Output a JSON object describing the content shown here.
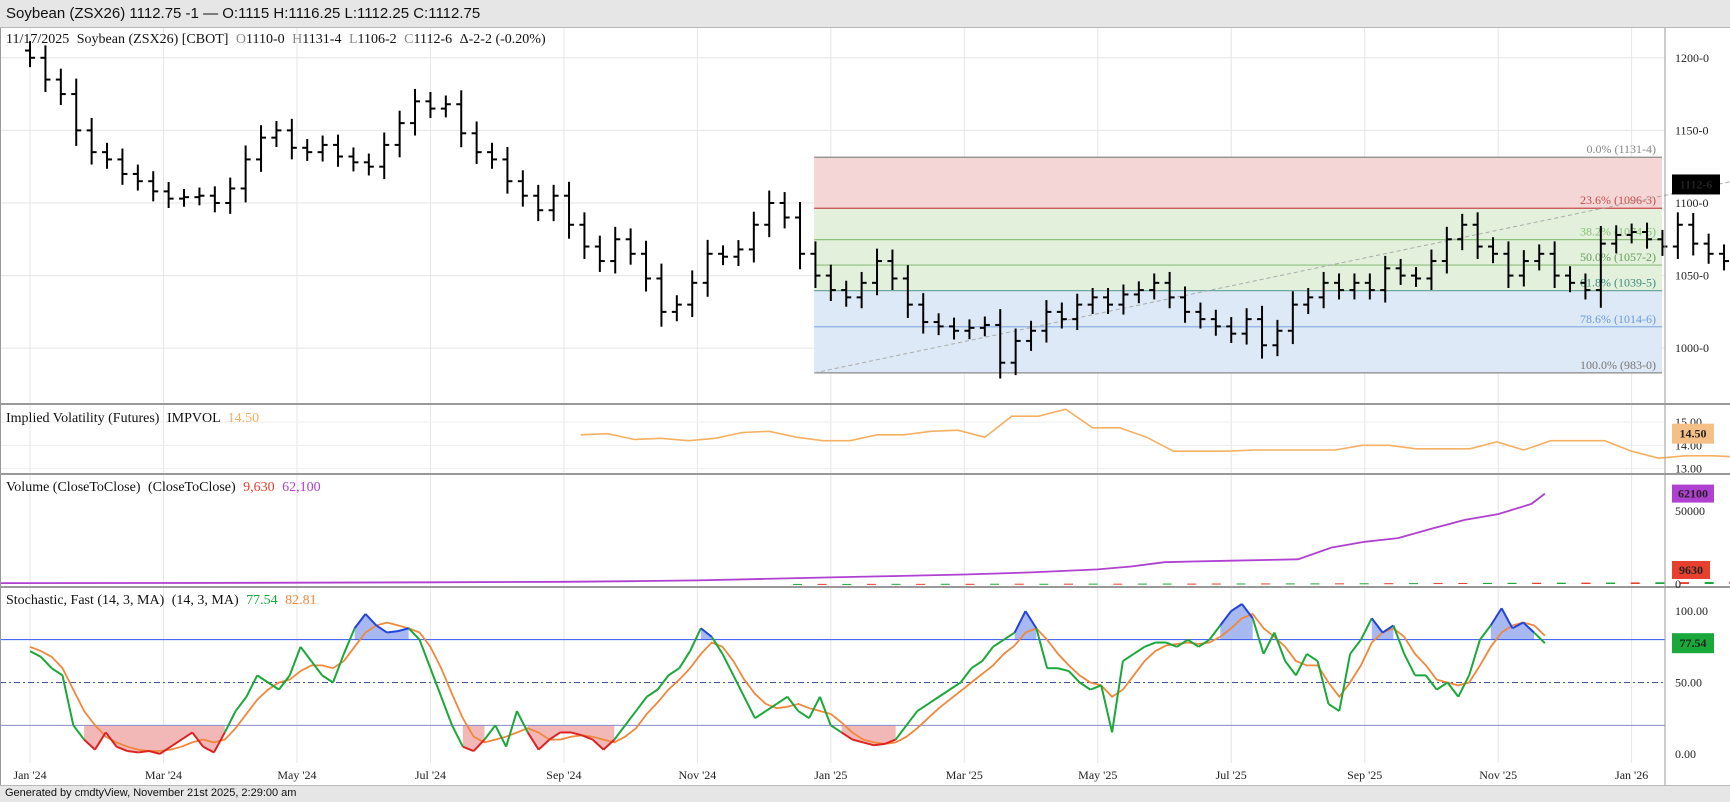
{
  "window": {
    "title": "Soybean (ZSX26) 1112.75 -1 — O:1115 H:1116.25 L:1112.25 C:1112.75"
  },
  "footer": {
    "text": "Generated by cmdtyView, November 21st 2025, 2:29:00 am"
  },
  "colors": {
    "stoch_k": "#1aa83a",
    "stoch_d": "#f0883c",
    "volume_bar_up": "#1aa83a",
    "volume_bar_down": "#e8402e",
    "open_interest": "#b040d0",
    "impvol": "#f5b062",
    "last_price_badge": "#000000"
  },
  "chart_data": [
    {
      "type": "ohlc",
      "panel": "price",
      "header": {
        "date": "11/17/2025",
        "symbol": "Soybean (ZSX26) [CBOT]",
        "o_label": "O",
        "o_value": "1110-0",
        "h_label": "H",
        "h_value": "1131-4",
        "l_label": "L",
        "l_value": "1106-2",
        "c_label": "C",
        "c_value": "1112-6",
        "change": "Δ-2-2 (-0.20%)"
      },
      "last_price_label": "1112-6",
      "last_price": 1112.75,
      "ylim": [
        965,
        1215
      ],
      "yticks": [
        1000,
        1050,
        1100,
        1150,
        1200
      ],
      "ytick_labels": [
        "1000-0",
        "1050-0",
        "1100-0",
        "1150-0",
        "1200-0"
      ],
      "x_months": [
        "Jan '24",
        "Mar '24",
        "May '24",
        "Jul '24",
        "Sep '24",
        "Nov '24",
        "Jan '25",
        "Mar '25",
        "May '25",
        "Jul '25",
        "Sep '25",
        "Nov '25",
        "Jan '26"
      ],
      "x_month_index": [
        0,
        2,
        4,
        6,
        8,
        10,
        12,
        14,
        16,
        18,
        20,
        22,
        24
      ],
      "xlim": [
        -0.45,
        24.5
      ],
      "weekly_close": [
        1200,
        1185,
        1175,
        1150,
        1135,
        1130,
        1120,
        1115,
        1108,
        1103,
        1104,
        1105,
        1100,
        1110,
        1130,
        1145,
        1150,
        1138,
        1135,
        1140,
        1132,
        1128,
        1125,
        1140,
        1155,
        1170,
        1165,
        1168,
        1148,
        1135,
        1130,
        1115,
        1105,
        1095,
        1105,
        1085,
        1070,
        1060,
        1075,
        1065,
        1048,
        1025,
        1030,
        1045,
        1065,
        1063,
        1068,
        1085,
        1100,
        1090,
        1065,
        1050,
        1040,
        1035,
        1045,
        1060,
        1048,
        1030,
        1018,
        1015,
        1012,
        1014,
        1016,
        990,
        1005,
        1012,
        1025,
        1020,
        1030,
        1035,
        1030,
        1037,
        1040,
        1045,
        1035,
        1025,
        1020,
        1015,
        1010,
        1020,
        1002,
        1012,
        1030,
        1035,
        1045,
        1040,
        1045,
        1040,
        1055,
        1050,
        1048,
        1060,
        1075,
        1085,
        1070,
        1065,
        1050,
        1060,
        1065,
        1050,
        1045,
        1040,
        1072,
        1078,
        1080,
        1075,
        1070,
        1085,
        1072,
        1065,
        1060,
        1058,
        1060,
        1072,
        1090,
        1105,
        1110,
        1122,
        1112.75
      ],
      "fib_levels": [
        {
          "pct": "0.0%",
          "label": "(1131-4)",
          "value": 1131.5
        },
        {
          "pct": "23.6%",
          "label": "(1096-3)",
          "value": 1096.375
        },
        {
          "pct": "38.2%",
          "label": "(1074-6)",
          "value": 1074.75
        },
        {
          "pct": "50.0%",
          "label": "(1057-2)",
          "value": 1057.25
        },
        {
          "pct": "61.8%",
          "label": "(1039-5)",
          "value": 1039.625
        },
        {
          "pct": "78.6%",
          "label": "(1014-6)",
          "value": 1014.75
        },
        {
          "pct": "100.0%",
          "label": "(983-0)",
          "value": 983
        }
      ],
      "fib_start_x": 11.75
    },
    {
      "type": "line",
      "panel": "implied_volatility",
      "label": "Implied Volatility (Futures)",
      "code": "IMPVOL",
      "value_text": "14.50",
      "badge": "14.50",
      "ylim": [
        12.9,
        15.6
      ],
      "yticks": [
        13,
        14,
        15
      ],
      "ytick_labels": [
        "13.00",
        "14.00",
        "15.00"
      ],
      "x_start": 8.25,
      "series": [
        14.45,
        14.5,
        14.25,
        14.3,
        14.2,
        14.3,
        14.55,
        14.6,
        14.35,
        14.2,
        14.2,
        14.45,
        14.45,
        14.6,
        14.65,
        14.35,
        15.25,
        15.25,
        15.55,
        14.75,
        14.75,
        14.35,
        13.75,
        13.75,
        13.75,
        13.8,
        13.8,
        13.8,
        13.8,
        14.0,
        14.0,
        13.85,
        13.85,
        13.85,
        14.15,
        13.8,
        14.2,
        14.2,
        14.2,
        13.75,
        13.45,
        13.55,
        13.55,
        13.5,
        13.5,
        13.7,
        13.7,
        13.7,
        13.65,
        13.6,
        13.6,
        13.6,
        13.6,
        13.55,
        13.7,
        14.05,
        14.35,
        14.2,
        14.1,
        14.2,
        14.35,
        14.15,
        15.05,
        14.5
      ]
    },
    {
      "type": "bar+line",
      "panel": "volume",
      "label": "Volume (CloseToClose)",
      "label2": "(CloseToClose)",
      "volume_value_text": "9,630",
      "oi_value_text": "62,100",
      "volume_badge": "9630",
      "oi_badge": "62100",
      "ylim": [
        0,
        68000
      ],
      "yticks": [
        0,
        50000
      ],
      "ytick_labels": [
        "0",
        "50000"
      ],
      "volume_x_start": 11.5,
      "volume": [
        50,
        80,
        60,
        90,
        120,
        100,
        150,
        130,
        180,
        200,
        160,
        220,
        250,
        230,
        280,
        300,
        260,
        320,
        350,
        380,
        400,
        420,
        450,
        500,
        550,
        600,
        650,
        700,
        750,
        800,
        850,
        900,
        950,
        1000,
        1100,
        1200,
        1300,
        1400,
        1500,
        1600,
        1700,
        1800,
        2000,
        2200,
        2300,
        2500,
        2700,
        2800,
        2900,
        3000,
        3100,
        3200,
        3300,
        3300,
        7000,
        5000,
        4500,
        5000,
        5500,
        6000,
        6500,
        7000,
        6000,
        7000,
        6000,
        23000,
        13000,
        14000,
        9630
      ],
      "volume_up": [
        true,
        false,
        true,
        false,
        true,
        false,
        true,
        false,
        true,
        false,
        true,
        false,
        true,
        false,
        true,
        true,
        false,
        false,
        true,
        false,
        true,
        true,
        false,
        true,
        false,
        true,
        false,
        false,
        true,
        true,
        false,
        true,
        false,
        true,
        false,
        true,
        false,
        true,
        false,
        true,
        true,
        false,
        true,
        false,
        true,
        false,
        true,
        false,
        true,
        false,
        true,
        false,
        false,
        false,
        true,
        false,
        true,
        false,
        false,
        false,
        true,
        false,
        true,
        false,
        true,
        true,
        false,
        false,
        false
      ],
      "open_interest_x": [
        -0.45,
        2,
        4,
        6,
        8,
        9,
        10,
        11,
        12,
        13,
        14,
        15,
        16,
        16.5,
        17,
        17.5,
        18,
        18.5,
        19,
        19.5,
        20,
        20.5,
        21,
        21.5,
        22,
        22.5,
        22.7
      ],
      "open_interest": [
        600,
        700,
        900,
        1200,
        1500,
        1900,
        2500,
        3500,
        4500,
        5500,
        6500,
        8000,
        10000,
        12000,
        15000,
        15500,
        16000,
        16500,
        17000,
        25000,
        29000,
        31500,
        38000,
        44000,
        48000,
        55000,
        62100
      ]
    },
    {
      "type": "line",
      "panel": "stochastic",
      "label": "Stochastic, Fast (14, 3, MA)",
      "label2": "(14, 3, MA)",
      "k_text": "77.54",
      "d_text": "82.81",
      "badge": "77.54",
      "ylim": [
        -5,
        112
      ],
      "yticks": [
        0,
        50,
        100
      ],
      "ytick_labels": [
        "0.00",
        "50.00",
        "100.00"
      ],
      "upper_band": 80,
      "lower_band": 20,
      "mid_band": 50,
      "k": [
        72,
        68,
        60,
        55,
        20,
        10,
        3,
        15,
        5,
        2,
        1,
        2,
        0,
        5,
        10,
        15,
        5,
        1,
        15,
        30,
        40,
        55,
        50,
        45,
        55,
        75,
        65,
        55,
        50,
        70,
        88,
        98,
        90,
        85,
        86,
        88,
        80,
        60,
        40,
        20,
        5,
        2,
        10,
        20,
        5,
        30,
        15,
        3,
        10,
        15,
        15,
        13,
        10,
        3,
        10,
        20,
        30,
        40,
        45,
        55,
        60,
        72,
        88,
        82,
        70,
        55,
        40,
        25,
        30,
        35,
        40,
        30,
        25,
        40,
        20,
        15,
        10,
        8,
        6,
        7,
        10,
        20,
        30,
        35,
        40,
        45,
        50,
        60,
        65,
        75,
        80,
        85,
        100,
        88,
        60,
        60,
        58,
        50,
        45,
        48,
        15,
        65,
        70,
        75,
        78,
        78,
        75,
        80,
        75,
        80,
        90,
        100,
        105,
        95,
        70,
        85,
        65,
        55,
        70,
        65,
        35,
        30,
        70,
        80,
        95,
        85,
        90,
        70,
        55,
        55,
        45,
        50,
        40,
        55,
        80,
        90,
        102,
        88,
        92,
        85,
        77.54
      ],
      "d": [
        75,
        72,
        68,
        60,
        45,
        30,
        20,
        12,
        8,
        5,
        3,
        2,
        2,
        3,
        5,
        8,
        10,
        8,
        10,
        18,
        28,
        38,
        45,
        50,
        52,
        58,
        62,
        62,
        60,
        65,
        75,
        85,
        90,
        92,
        90,
        88,
        85,
        75,
        60,
        42,
        25,
        12,
        8,
        10,
        12,
        15,
        18,
        15,
        10,
        10,
        12,
        13,
        12,
        10,
        8,
        12,
        18,
        28,
        36,
        45,
        52,
        60,
        70,
        78,
        75,
        65,
        52,
        42,
        35,
        32,
        33,
        35,
        32,
        30,
        28,
        22,
        15,
        10,
        8,
        7,
        8,
        12,
        18,
        25,
        32,
        38,
        44,
        50,
        56,
        62,
        70,
        76,
        85,
        88,
        80,
        70,
        62,
        55,
        50,
        48,
        40,
        45,
        55,
        65,
        72,
        76,
        77,
        78,
        77,
        78,
        82,
        88,
        95,
        98,
        88,
        82,
        75,
        65,
        62,
        62,
        50,
        40,
        50,
        62,
        78,
        85,
        88,
        82,
        70,
        62,
        52,
        50,
        48,
        50,
        62,
        75,
        85,
        90,
        92,
        90,
        82.81
      ]
    }
  ]
}
